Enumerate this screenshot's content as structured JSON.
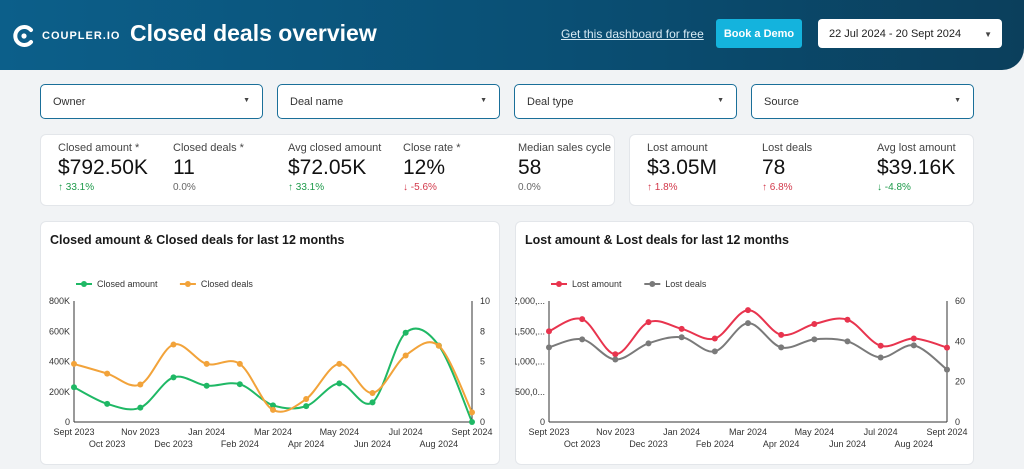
{
  "header": {
    "logo_text": "COUPLER.IO",
    "title": "Closed deals overview",
    "get_link": "Get this dashboard for free",
    "demo_button": "Book a Demo",
    "date_range": "22 Jul 2024 - 20 Sept 2024"
  },
  "filters": [
    {
      "label": "Owner"
    },
    {
      "label": "Deal name"
    },
    {
      "label": "Deal type"
    },
    {
      "label": "Source"
    }
  ],
  "kpis_closed": [
    {
      "label": "Closed amount *",
      "value": "$792.50K",
      "delta": "↑ 33.1%",
      "tone": "up-good"
    },
    {
      "label": "Closed deals *",
      "value": "11",
      "delta": "0.0%",
      "tone": "neutral"
    },
    {
      "label": "Avg closed amount",
      "value": "$72.05K",
      "delta": "↑ 33.1%",
      "tone": "up-good"
    },
    {
      "label": "Close rate *",
      "value": "12%",
      "delta": "↓ -5.6%",
      "tone": "down-bad"
    },
    {
      "label": "Median sales cycle",
      "value": "58",
      "delta": "0.0%",
      "tone": "neutral"
    }
  ],
  "kpis_lost": [
    {
      "label": "Lost amount",
      "value": "$3.05M",
      "delta": "↑ 1.8%",
      "tone": "up-bad"
    },
    {
      "label": "Lost deals",
      "value": "78",
      "delta": "↑ 6.8%",
      "tone": "up-bad"
    },
    {
      "label": "Avg lost amount",
      "value": "$39.16K",
      "delta": "↓ -4.8%",
      "tone": "down-good"
    }
  ],
  "colors": {
    "closed_amount": "#1fb865",
    "closed_deals": "#f2a33a",
    "lost_amount": "#e8344e",
    "lost_deals": "#7a7a7a"
  },
  "chart_data": [
    {
      "type": "line",
      "title": "Closed amount & Closed deals for last 12 months",
      "categories": [
        "Sept 2023",
        "Oct 2023",
        "Nov 2023",
        "Dec 2023",
        "Jan 2024",
        "Feb 2024",
        "Mar 2024",
        "Apr 2024",
        "May 2024",
        "Jun 2024",
        "Jul 2024",
        "Aug 2024",
        "Sept 2024"
      ],
      "series": [
        {
          "name": "Closed amount",
          "axis": "left",
          "values": [
            230000,
            120000,
            95000,
            295000,
            240000,
            250000,
            110000,
            105000,
            255000,
            130000,
            590000,
            505000,
            0
          ]
        },
        {
          "name": "Closed deals",
          "axis": "right",
          "values": [
            4.8,
            4.0,
            3.1,
            6.4,
            4.8,
            4.8,
            1.0,
            1.9,
            4.8,
            2.4,
            5.5,
            6.3,
            0.8
          ]
        }
      ],
      "y_left": {
        "min": 0,
        "max": 800000,
        "ticks": [
          "0",
          "200K",
          "400K",
          "600K",
          "800K"
        ]
      },
      "y_right": {
        "min": 0,
        "max": 10,
        "ticks": [
          "0",
          "3",
          "5",
          "8",
          "10"
        ]
      }
    },
    {
      "type": "line",
      "title": "Lost amount & Lost deals for last 12 months",
      "categories": [
        "Sept 2023",
        "Oct 2023",
        "Nov 2023",
        "Dec 2023",
        "Jan 2024",
        "Feb 2024",
        "Mar 2024",
        "Apr 2024",
        "May 2024",
        "Jun 2024",
        "Jul 2024",
        "Aug 2024",
        "Sept 2024"
      ],
      "series": [
        {
          "name": "Lost amount",
          "axis": "left",
          "values": [
            1500000,
            1700000,
            1120000,
            1650000,
            1540000,
            1380000,
            1850000,
            1440000,
            1620000,
            1690000,
            1260000,
            1380000,
            1230000
          ]
        },
        {
          "name": "Lost deals",
          "axis": "right",
          "values": [
            37,
            41,
            31,
            39,
            42,
            35,
            49,
            37,
            41,
            40,
            32,
            38,
            26
          ]
        }
      ],
      "y_left": {
        "min": 0,
        "max": 2000000,
        "ticks": [
          "0",
          "500,0...",
          "1,000,...",
          "1,500,...",
          "2,000,..."
        ]
      },
      "y_right": {
        "min": 0,
        "max": 60,
        "ticks": [
          "0",
          "20",
          "40",
          "60"
        ]
      }
    }
  ]
}
